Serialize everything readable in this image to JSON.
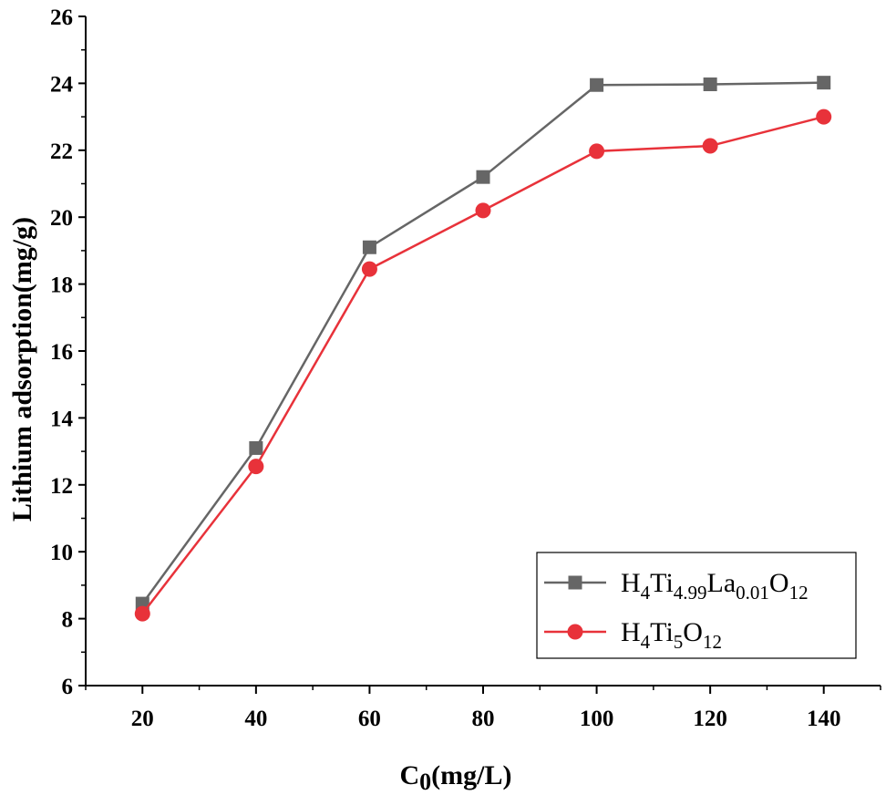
{
  "chart_data": {
    "type": "line",
    "title": "",
    "xlabel": {
      "main": "C",
      "sub": "0",
      "rest": "(mg/L)"
    },
    "ylabel": "Lithium adsorption(mg/g)",
    "xlim": [
      10,
      150
    ],
    "ylim": [
      6,
      26
    ],
    "x": [
      20,
      40,
      60,
      80,
      100,
      120,
      140
    ],
    "xticks": [
      "20",
      "40",
      "60",
      "80",
      "100",
      "120",
      "140"
    ],
    "yticks": [
      "6",
      "8",
      "10",
      "12",
      "14",
      "16",
      "18",
      "20",
      "22",
      "24",
      "26"
    ],
    "legend_position": "bottom-right",
    "series": [
      {
        "name": "H4Ti4.99La0.01O12",
        "name_parts": [
          [
            "H",
            ""
          ],
          [
            "4",
            "sub"
          ],
          [
            "Ti",
            ""
          ],
          [
            "4.99",
            "sub"
          ],
          [
            "La",
            ""
          ],
          [
            "0.01",
            "sub"
          ],
          [
            "O",
            ""
          ],
          [
            "12",
            "sub"
          ]
        ],
        "values": [
          8.45,
          13.1,
          19.1,
          21.2,
          23.95,
          23.97,
          24.02
        ],
        "color": "#666666",
        "marker": "square"
      },
      {
        "name": "H4Ti5O12",
        "name_parts": [
          [
            "H",
            ""
          ],
          [
            "4",
            "sub"
          ],
          [
            "Ti",
            ""
          ],
          [
            "5",
            "sub"
          ],
          [
            "O",
            ""
          ],
          [
            "12",
            "sub"
          ]
        ],
        "values": [
          8.15,
          12.55,
          18.45,
          20.2,
          21.97,
          22.13,
          23.0
        ],
        "color": "#e8323a",
        "marker": "circle"
      }
    ]
  }
}
